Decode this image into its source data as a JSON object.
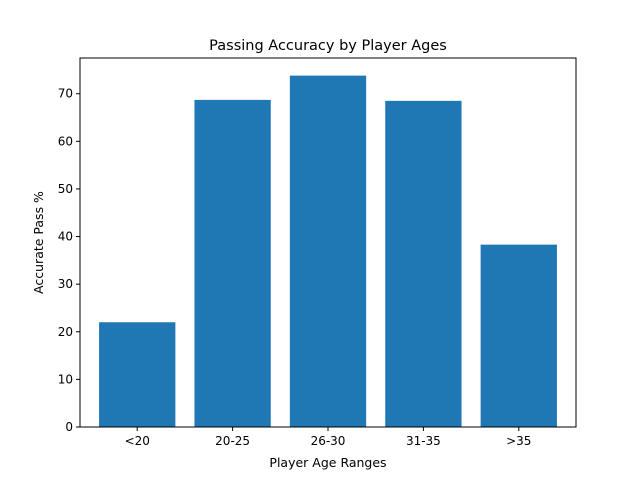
{
  "chart_data": {
    "type": "bar",
    "title": "Passing Accuracy by Player Ages",
    "xlabel": "Player Age Ranges",
    "ylabel": "Accurate Pass %",
    "categories": [
      "<20",
      "20-25",
      "26-30",
      "31-35",
      ">35"
    ],
    "values": [
      22.0,
      68.7,
      73.8,
      68.5,
      38.3
    ],
    "ylim": [
      0,
      77.5
    ],
    "yticks": [
      "0",
      "10",
      "20",
      "30",
      "40",
      "50",
      "60",
      "70"
    ],
    "grid": false,
    "bar_color": "#1f77b4"
  }
}
